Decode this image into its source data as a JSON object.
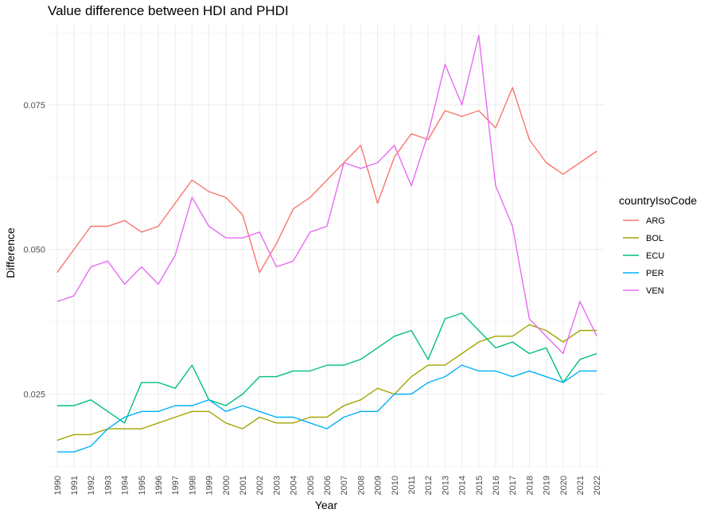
{
  "chart_data": {
    "type": "line",
    "title": "Value difference between HDI and PHDI",
    "xlabel": "Year",
    "ylabel": "Difference",
    "x": [
      1990,
      1991,
      1992,
      1993,
      1994,
      1995,
      1996,
      1997,
      1998,
      1999,
      2000,
      2001,
      2002,
      2003,
      2004,
      2005,
      2006,
      2007,
      2008,
      2009,
      2010,
      2011,
      2012,
      2013,
      2014,
      2015,
      2016,
      2017,
      2018,
      2019,
      2020,
      2021,
      2022
    ],
    "y_ticks": [
      0.025,
      0.05,
      0.075
    ],
    "y_tick_labels": [
      "0.025",
      "0.050",
      "0.075"
    ],
    "ylim": [
      0.012,
      0.089
    ],
    "grid": true,
    "legend": {
      "title": "countryIsoCode",
      "position": "right"
    },
    "series": [
      {
        "name": "ARG",
        "color": "#F8766D",
        "values": [
          0.046,
          0.05,
          0.054,
          0.054,
          0.055,
          0.053,
          0.054,
          0.058,
          0.062,
          0.06,
          0.059,
          0.056,
          0.046,
          0.051,
          0.057,
          0.059,
          0.062,
          0.065,
          0.068,
          0.058,
          0.066,
          0.07,
          0.069,
          0.074,
          0.073,
          0.074,
          0.071,
          0.078,
          0.069,
          0.065,
          0.063,
          0.065,
          0.067
        ]
      },
      {
        "name": "BOL",
        "color": "#A3A500",
        "values": [
          0.017,
          0.018,
          0.018,
          0.019,
          0.019,
          0.019,
          0.02,
          0.021,
          0.022,
          0.022,
          0.02,
          0.019,
          0.021,
          0.02,
          0.02,
          0.021,
          0.021,
          0.023,
          0.024,
          0.026,
          0.025,
          0.028,
          0.03,
          0.03,
          0.032,
          0.034,
          0.035,
          0.035,
          0.037,
          0.036,
          0.034,
          0.036,
          0.036
        ]
      },
      {
        "name": "ECU",
        "color": "#00BF7D",
        "values": [
          0.023,
          0.023,
          0.024,
          0.022,
          0.02,
          0.027,
          0.027,
          0.026,
          0.03,
          0.024,
          0.023,
          0.025,
          0.028,
          0.028,
          0.029,
          0.029,
          0.03,
          0.03,
          0.031,
          0.033,
          0.035,
          0.036,
          0.031,
          0.038,
          0.039,
          0.036,
          0.033,
          0.034,
          0.032,
          0.033,
          0.027,
          0.031,
          0.032
        ]
      },
      {
        "name": "PER",
        "color": "#00B0F6",
        "values": [
          0.015,
          0.015,
          0.016,
          0.019,
          0.021,
          0.022,
          0.022,
          0.023,
          0.023,
          0.024,
          0.022,
          0.023,
          0.022,
          0.021,
          0.021,
          0.02,
          0.019,
          0.021,
          0.022,
          0.022,
          0.025,
          0.025,
          0.027,
          0.028,
          0.03,
          0.029,
          0.029,
          0.028,
          0.029,
          0.028,
          0.027,
          0.029,
          0.029
        ]
      },
      {
        "name": "VEN",
        "color": "#E76BF3",
        "values": [
          0.041,
          0.042,
          0.047,
          0.048,
          0.044,
          0.047,
          0.044,
          0.049,
          0.059,
          0.054,
          0.052,
          0.052,
          0.053,
          0.047,
          0.048,
          0.053,
          0.054,
          0.065,
          0.064,
          0.065,
          0.068,
          0.061,
          0.07,
          0.082,
          0.075,
          0.087,
          0.061,
          0.054,
          0.038,
          0.035,
          0.032,
          0.041,
          0.035
        ]
      }
    ]
  }
}
